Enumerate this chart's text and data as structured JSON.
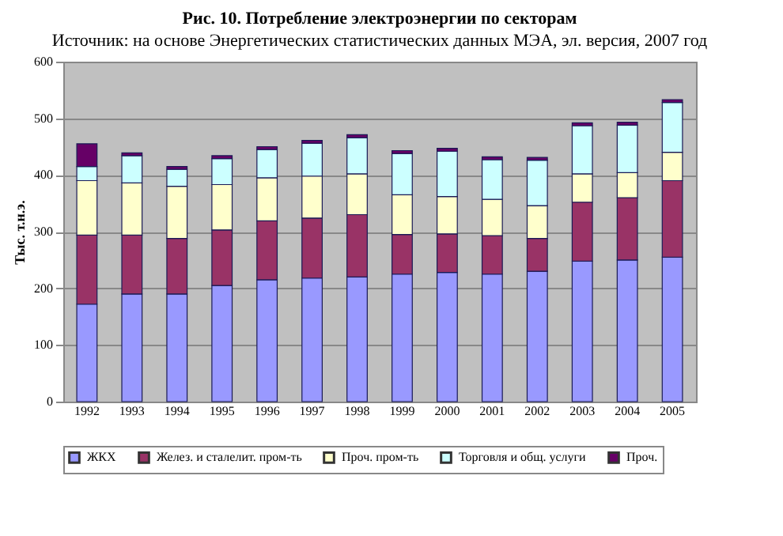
{
  "chart_data": {
    "type": "bar",
    "stacked": true,
    "title": "Рис. 10. Потребление электроэнергии по секторам",
    "ylabel": "Тыс. т.н.э.",
    "categories": [
      "1992",
      "1993",
      "1994",
      "1995",
      "1996",
      "1997",
      "1998",
      "1999",
      "2000",
      "2001",
      "2002",
      "2003",
      "2004",
      "2005"
    ],
    "series": [
      {
        "name": "ЖКХ",
        "color": "#9999ff",
        "values": [
          172,
          190,
          190,
          205,
          215,
          218,
          220,
          225,
          228,
          225,
          230,
          248,
          250,
          255
        ]
      },
      {
        "name": "Желез. и сталелит. пром-ть",
        "color": "#993366",
        "values": [
          122,
          104,
          98,
          98,
          104,
          106,
          110,
          70,
          68,
          68,
          58,
          104,
          110,
          135
        ]
      },
      {
        "name": "Проч. пром-ть",
        "color": "#ffffcc",
        "values": [
          96,
          92,
          92,
          80,
          76,
          74,
          72,
          70,
          66,
          64,
          58,
          50,
          44,
          50
        ]
      },
      {
        "name": "Торговля и общ. услуги",
        "color": "#ccffff",
        "values": [
          25,
          48,
          30,
          46,
          50,
          58,
          64,
          73,
          80,
          70,
          80,
          85,
          84,
          88
        ]
      },
      {
        "name": "Проч.",
        "color": "#660066",
        "values": [
          40,
          5,
          5,
          5,
          5,
          5,
          5,
          5,
          5,
          5,
          5,
          5,
          5,
          5
        ]
      }
    ],
    "ylim": [
      0,
      600
    ],
    "yticks": [
      0,
      100,
      200,
      300,
      400,
      500,
      600
    ],
    "grid": "y",
    "legend": "bottom",
    "annotations": [
      "Источник: на основе Энергетических статистических данных МЭА, эл. версия, 2007 год"
    ]
  }
}
